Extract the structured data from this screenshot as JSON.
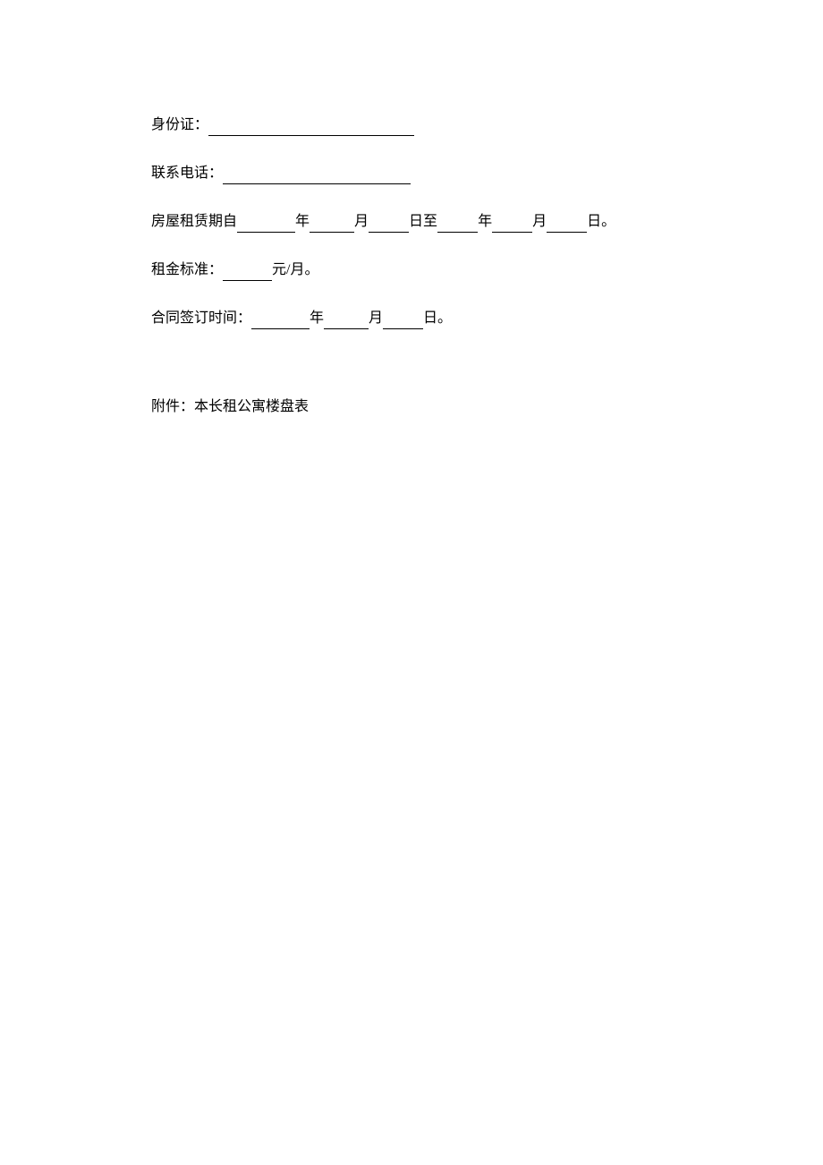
{
  "document": {
    "text_color": "#000000",
    "background_color": "#ffffff",
    "font_size": 16,
    "font_family": "SimSun",
    "lines": {
      "id_label": "身份证：",
      "phone_label": "联系电话：",
      "lease_period_prefix": "房屋租赁期自",
      "year_unit": "年",
      "month_unit": "月",
      "day_unit_to": "日至",
      "day_unit_end": "日。",
      "rent_label": "租金标准：",
      "rent_unit": "元/月。",
      "sign_date_label": "合同签订时间：",
      "day_unit": "日。",
      "attachment_label": "附件：本长租公寓楼盘表"
    }
  }
}
